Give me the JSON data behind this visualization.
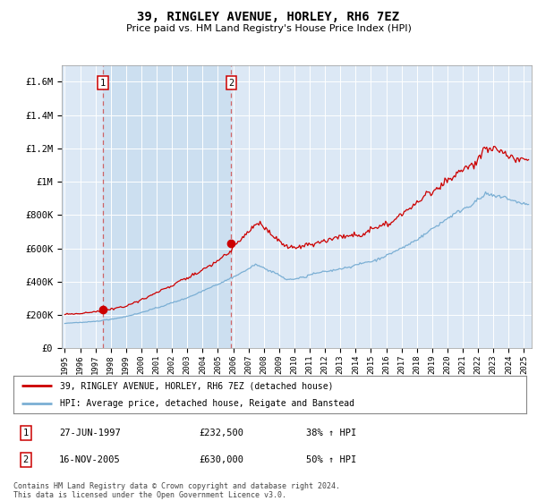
{
  "title": "39, RINGLEY AVENUE, HORLEY, RH6 7EZ",
  "subtitle": "Price paid vs. HM Land Registry's House Price Index (HPI)",
  "hpi_color": "#7bafd4",
  "price_color": "#cc0000",
  "dot_color": "#cc0000",
  "bg_color": "#dce8f5",
  "shade_color": "#ccdff0",
  "grid_color": "#ffffff",
  "ylim_max": 1700000,
  "xlim_start": 1994.8,
  "xlim_end": 2025.5,
  "sale1_year": 1997.49,
  "sale1_price": 232500,
  "sale2_year": 2005.88,
  "sale2_price": 630000,
  "legend_entry1": "39, RINGLEY AVENUE, HORLEY, RH6 7EZ (detached house)",
  "legend_entry2": "HPI: Average price, detached house, Reigate and Banstead",
  "table_row1_num": "1",
  "table_row1_date": "27-JUN-1997",
  "table_row1_price": "£232,500",
  "table_row1_hpi": "38% ↑ HPI",
  "table_row2_num": "2",
  "table_row2_date": "16-NOV-2005",
  "table_row2_price": "£630,000",
  "table_row2_hpi": "50% ↑ HPI",
  "footer": "Contains HM Land Registry data © Crown copyright and database right 2024.\nThis data is licensed under the Open Government Licence v3.0.",
  "xticks": [
    1995,
    1996,
    1997,
    1998,
    1999,
    2000,
    2001,
    2002,
    2003,
    2004,
    2005,
    2006,
    2007,
    2008,
    2009,
    2010,
    2011,
    2012,
    2013,
    2014,
    2015,
    2016,
    2017,
    2018,
    2019,
    2020,
    2021,
    2022,
    2023,
    2024,
    2025
  ],
  "ytick_vals": [
    0,
    200000,
    400000,
    600000,
    800000,
    1000000,
    1200000,
    1400000,
    1600000
  ],
  "ytick_labels": [
    "£0",
    "£200K",
    "£400K",
    "£600K",
    "£800K",
    "£1M",
    "£1.2M",
    "£1.4M",
    "£1.6M"
  ]
}
